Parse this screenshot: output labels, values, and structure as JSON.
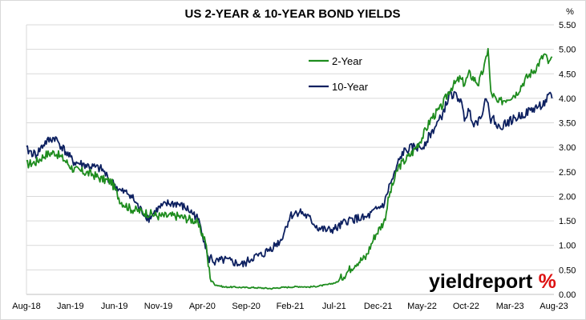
{
  "chart_data": {
    "type": "line",
    "title": "US 2-YEAR & 10-YEAR BOND YIELDS",
    "ylabel": "%",
    "ylim": [
      0,
      5.5
    ],
    "yticks": [
      "0.00",
      "0.50",
      "1.00",
      "1.50",
      "2.00",
      "2.50",
      "3.00",
      "3.50",
      "4.00",
      "4.50",
      "5.00",
      "5.50"
    ],
    "xticks": [
      "Aug-18",
      "Jan-19",
      "Jun-19",
      "Nov-19",
      "Apr-20",
      "Sep-20",
      "Feb-21",
      "Jul-21",
      "Dec-21",
      "May-22",
      "Oct-22",
      "Mar-23",
      "Aug-23"
    ],
    "grid": "horizontal",
    "legend_position": "top-center",
    "series": [
      {
        "name": "2-Year",
        "color": "#1e8c1e",
        "points": [
          [
            0,
            2.65
          ],
          [
            1,
            2.7
          ],
          [
            2,
            2.85
          ],
          [
            3,
            2.9
          ],
          [
            4,
            2.75
          ],
          [
            5,
            2.55
          ],
          [
            6,
            2.5
          ],
          [
            7,
            2.45
          ],
          [
            8,
            2.35
          ],
          [
            9,
            2.3
          ],
          [
            10,
            1.9
          ],
          [
            11,
            1.75
          ],
          [
            12,
            1.7
          ],
          [
            13,
            1.65
          ],
          [
            14,
            1.6
          ],
          [
            15,
            1.6
          ],
          [
            16,
            1.6
          ],
          [
            17,
            1.55
          ],
          [
            18,
            1.5
          ],
          [
            18.5,
            1.3
          ],
          [
            19,
            1.1
          ],
          [
            19.3,
            0.6
          ],
          [
            19.6,
            0.3
          ],
          [
            20,
            0.2
          ],
          [
            21,
            0.15
          ],
          [
            22,
            0.15
          ],
          [
            23,
            0.14
          ],
          [
            24,
            0.14
          ],
          [
            25,
            0.13
          ],
          [
            26,
            0.12
          ],
          [
            27,
            0.14
          ],
          [
            28,
            0.15
          ],
          [
            29,
            0.16
          ],
          [
            30,
            0.15
          ],
          [
            31,
            0.17
          ],
          [
            32,
            0.2
          ],
          [
            33,
            0.25
          ],
          [
            34,
            0.45
          ],
          [
            35,
            0.65
          ],
          [
            36,
            0.75
          ],
          [
            37,
            1.2
          ],
          [
            38,
            1.5
          ],
          [
            38.5,
            2.0
          ],
          [
            39,
            2.3
          ],
          [
            39.5,
            2.6
          ],
          [
            40,
            2.7
          ],
          [
            41,
            2.9
          ],
          [
            42,
            3.2
          ],
          [
            43,
            3.6
          ],
          [
            44,
            3.8
          ],
          [
            45,
            4.2
          ],
          [
            46,
            4.4
          ],
          [
            46.5,
            4.3
          ],
          [
            47,
            4.5
          ],
          [
            47.5,
            4.4
          ],
          [
            48,
            4.3
          ],
          [
            48.7,
            4.7
          ],
          [
            49,
            5.05
          ],
          [
            49.3,
            4.1
          ],
          [
            49.6,
            4.05
          ],
          [
            50,
            3.9
          ],
          [
            51,
            4.0
          ],
          [
            52,
            4.1
          ],
          [
            53,
            4.4
          ],
          [
            54,
            4.6
          ],
          [
            55,
            4.9
          ],
          [
            55.5,
            4.7
          ],
          [
            55.8,
            4.85
          ]
        ]
      },
      {
        "name": "10-Year",
        "color": "#0d2060",
        "points": [
          [
            0,
            2.95
          ],
          [
            1,
            2.85
          ],
          [
            2,
            3.1
          ],
          [
            3,
            3.2
          ],
          [
            4,
            2.95
          ],
          [
            5,
            2.7
          ],
          [
            6,
            2.65
          ],
          [
            7,
            2.6
          ],
          [
            8,
            2.55
          ],
          [
            9,
            2.3
          ],
          [
            10,
            2.1
          ],
          [
            11,
            2.05
          ],
          [
            12,
            1.75
          ],
          [
            13,
            1.55
          ],
          [
            14,
            1.75
          ],
          [
            15,
            1.85
          ],
          [
            16,
            1.85
          ],
          [
            17,
            1.75
          ],
          [
            18,
            1.6
          ],
          [
            18.5,
            1.4
          ],
          [
            19,
            1.0
          ],
          [
            19.3,
            0.7
          ],
          [
            19.6,
            0.75
          ],
          [
            20,
            0.65
          ],
          [
            21,
            0.7
          ],
          [
            22,
            0.65
          ],
          [
            23,
            0.6
          ],
          [
            24,
            0.75
          ],
          [
            25,
            0.8
          ],
          [
            26,
            0.95
          ],
          [
            27,
            1.1
          ],
          [
            28,
            1.6
          ],
          [
            29,
            1.7
          ],
          [
            30,
            1.55
          ],
          [
            31,
            1.35
          ],
          [
            32,
            1.3
          ],
          [
            33,
            1.35
          ],
          [
            34,
            1.5
          ],
          [
            35,
            1.55
          ],
          [
            36,
            1.55
          ],
          [
            37,
            1.7
          ],
          [
            38,
            1.85
          ],
          [
            38.5,
            2.2
          ],
          [
            39,
            2.4
          ],
          [
            39.5,
            2.7
          ],
          [
            40,
            2.9
          ],
          [
            41,
            3.0
          ],
          [
            42,
            3.0
          ],
          [
            43,
            3.3
          ],
          [
            44,
            3.6
          ],
          [
            45,
            4.1
          ],
          [
            46,
            4.0
          ],
          [
            46.5,
            3.6
          ],
          [
            47,
            3.75
          ],
          [
            47.5,
            3.5
          ],
          [
            48,
            3.55
          ],
          [
            48.7,
            3.9
          ],
          [
            49,
            4.0
          ],
          [
            49.3,
            3.5
          ],
          [
            49.6,
            3.6
          ],
          [
            50,
            3.4
          ],
          [
            51,
            3.5
          ],
          [
            52,
            3.6
          ],
          [
            53,
            3.7
          ],
          [
            54,
            3.8
          ],
          [
            55,
            3.9
          ],
          [
            55.5,
            4.05
          ],
          [
            55.8,
            4.0
          ]
        ]
      }
    ]
  },
  "logo": {
    "text": "yieldreport",
    "pct": "%"
  }
}
